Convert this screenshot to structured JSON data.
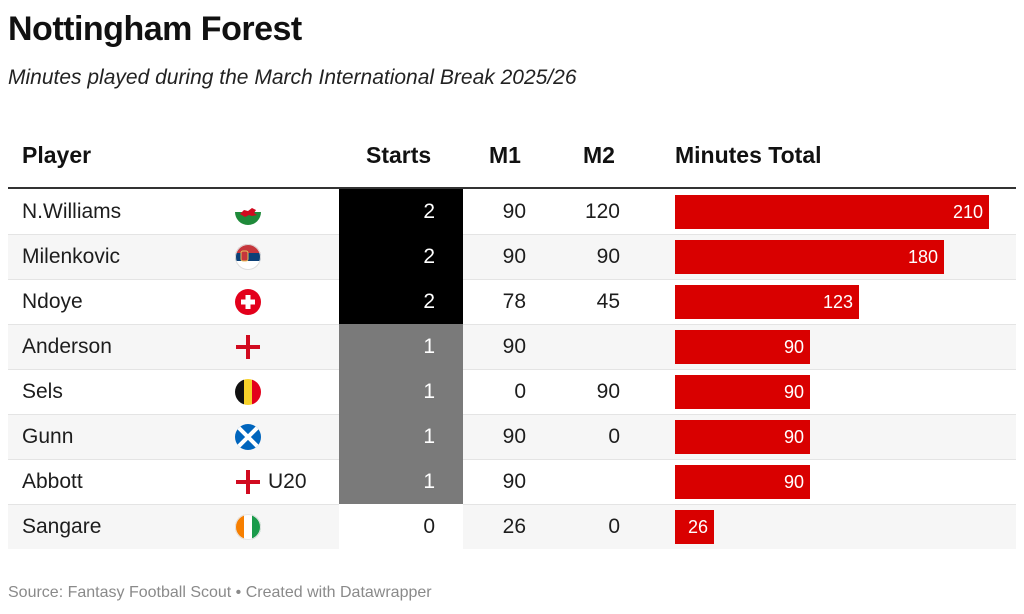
{
  "title": "Nottingham Forest",
  "subtitle": "Minutes played during the March International Break 2025/26",
  "source": "Source: Fantasy Football Scout • Created with Datawrapper",
  "columns": {
    "player": "Player",
    "starts": "Starts",
    "m1": "M1",
    "m2": "M2",
    "total": "Minutes Total"
  },
  "colors": {
    "bar": "#d90000",
    "starts_2": "#000000",
    "starts_1": "#7a7a7a",
    "starts_0": "#ffffff"
  },
  "chart_data": {
    "type": "table",
    "bar_max": 210,
    "rows": [
      {
        "player": "N.Williams",
        "flag": "wales-flag-icon",
        "flag_note": "",
        "starts": "2",
        "m1": "90",
        "m2": "120",
        "total": 210
      },
      {
        "player": "Milenkovic",
        "flag": "serbia-flag-icon",
        "flag_note": "",
        "starts": "2",
        "m1": "90",
        "m2": "90",
        "total": 180
      },
      {
        "player": "Ndoye",
        "flag": "switzerland-flag-icon",
        "flag_note": "",
        "starts": "2",
        "m1": "78",
        "m2": "45",
        "total": 123
      },
      {
        "player": "Anderson",
        "flag": "england-flag-icon",
        "flag_note": "",
        "starts": "1",
        "m1": "90",
        "m2": "",
        "total": 90
      },
      {
        "player": "Sels",
        "flag": "belgium-flag-icon",
        "flag_note": "",
        "starts": "1",
        "m1": "0",
        "m2": "90",
        "total": 90
      },
      {
        "player": "Gunn",
        "flag": "scotland-flag-icon",
        "flag_note": "",
        "starts": "1",
        "m1": "90",
        "m2": "0",
        "total": 90
      },
      {
        "player": "Abbott",
        "flag": "england-flag-icon",
        "flag_note": "U20",
        "starts": "1",
        "m1": "90",
        "m2": "",
        "total": 90
      },
      {
        "player": "Sangare",
        "flag": "ivory-coast-flag-icon",
        "flag_note": "",
        "starts": "0",
        "m1": "26",
        "m2": "0",
        "total": 26
      }
    ]
  }
}
